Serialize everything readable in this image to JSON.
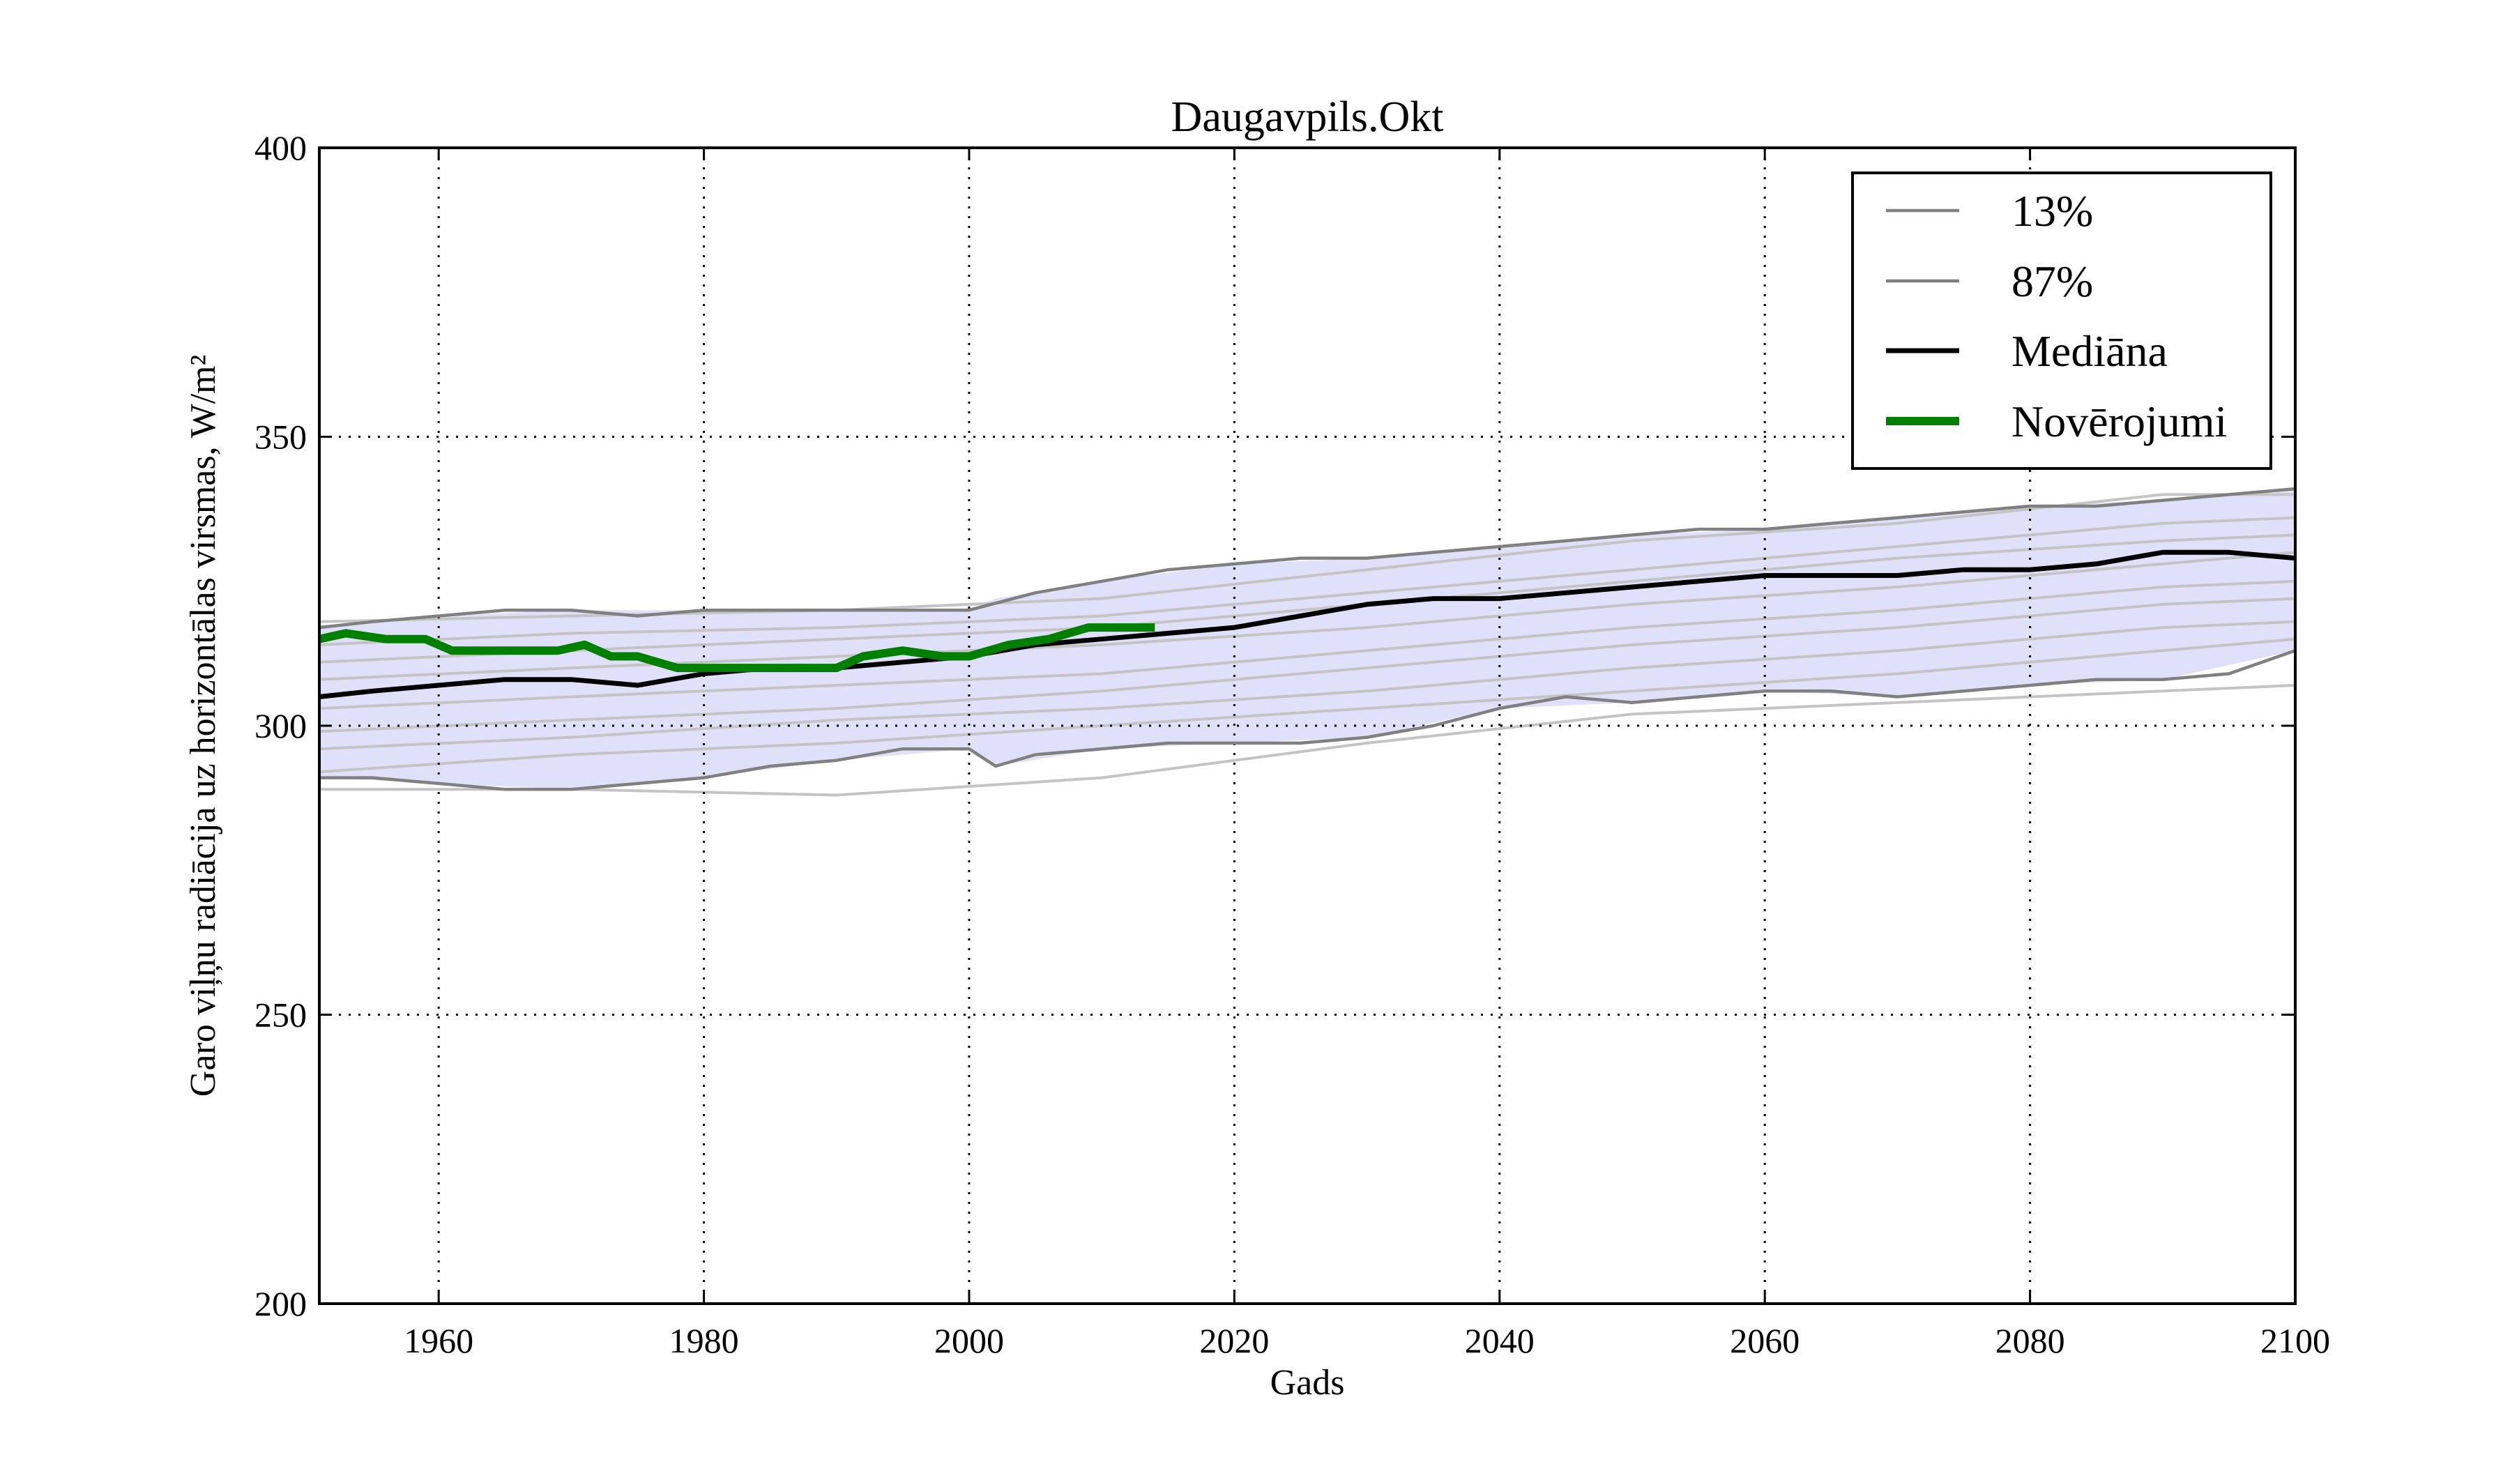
{
  "chart_data": {
    "type": "line",
    "title": "Daugavpils.Okt",
    "xlabel": "Gads",
    "ylabel": "Garo viļņu radiācija uz horizontālas virsmas, W/m²",
    "xlim": [
      1951,
      2100
    ],
    "ylim": [
      200,
      400
    ],
    "xticks": [
      1960,
      1980,
      2000,
      2020,
      2040,
      2060,
      2080,
      2100
    ],
    "yticks": [
      200,
      250,
      300,
      350,
      400
    ],
    "grid": true,
    "legend_position": "top-right",
    "band_color": "#e0e0fb",
    "band": {
      "name": "",
      "x": [
        1951,
        1960,
        1970,
        1980,
        1990,
        2000,
        2002,
        2010,
        2020,
        2030,
        2040,
        2050,
        2060,
        2070,
        2080,
        2090,
        2100
      ],
      "lower": [
        291,
        290,
        289,
        291,
        294,
        296,
        293,
        296,
        297,
        298,
        303,
        304,
        306,
        305,
        307,
        308,
        313
      ],
      "upper": [
        317,
        319,
        320,
        320,
        320,
        320,
        322,
        325,
        328,
        329,
        331,
        333,
        334,
        336,
        338,
        339,
        341
      ]
    },
    "series": [
      {
        "name": "13%",
        "role": "lower-percentile",
        "color": "#808080",
        "x": [
          1951,
          1955,
          1960,
          1965,
          1970,
          1975,
          1980,
          1985,
          1990,
          1995,
          2000,
          2002,
          2005,
          2010,
          2015,
          2020,
          2025,
          2030,
          2035,
          2040,
          2045,
          2050,
          2055,
          2060,
          2065,
          2070,
          2075,
          2080,
          2085,
          2090,
          2095,
          2100
        ],
        "y": [
          291,
          291,
          290,
          289,
          289,
          290,
          291,
          293,
          294,
          296,
          296,
          293,
          295,
          296,
          297,
          297,
          297,
          298,
          300,
          303,
          305,
          304,
          305,
          306,
          306,
          305,
          306,
          307,
          308,
          308,
          309,
          313
        ]
      },
      {
        "name": "87%",
        "role": "upper-percentile",
        "color": "#808080",
        "x": [
          1951,
          1955,
          1960,
          1965,
          1970,
          1975,
          1980,
          1985,
          1990,
          1995,
          2000,
          2005,
          2010,
          2015,
          2020,
          2025,
          2030,
          2035,
          2040,
          2045,
          2050,
          2055,
          2060,
          2065,
          2070,
          2075,
          2080,
          2085,
          2090,
          2095,
          2100
        ],
        "y": [
          317,
          318,
          319,
          320,
          320,
          319,
          320,
          320,
          320,
          320,
          320,
          323,
          325,
          327,
          328,
          329,
          329,
          330,
          331,
          332,
          333,
          334,
          334,
          335,
          336,
          337,
          338,
          338,
          339,
          340,
          341
        ]
      },
      {
        "name": "Mediāna",
        "role": "median",
        "color": "#000000",
        "x": [
          1951,
          1955,
          1960,
          1965,
          1970,
          1975,
          1980,
          1985,
          1990,
          1995,
          2000,
          2005,
          2010,
          2015,
          2020,
          2025,
          2030,
          2035,
          2040,
          2045,
          2050,
          2055,
          2060,
          2065,
          2070,
          2075,
          2080,
          2085,
          2090,
          2095,
          2100
        ],
        "y": [
          305,
          306,
          307,
          308,
          308,
          307,
          309,
          310,
          310,
          311,
          312,
          314,
          315,
          316,
          317,
          319,
          321,
          322,
          322,
          323,
          324,
          325,
          326,
          326,
          326,
          327,
          327,
          328,
          330,
          330,
          329
        ]
      },
      {
        "name": "Novērojumi",
        "role": "observations",
        "color": "#008000",
        "x": [
          1951,
          1953,
          1956,
          1959,
          1961,
          1963,
          1966,
          1969,
          1971,
          1973,
          1975,
          1978,
          1981,
          1984,
          1987,
          1990,
          1992,
          1995,
          1998,
          2000,
          2003,
          2006,
          2009,
          2012,
          2014
        ],
        "y": [
          315,
          316,
          315,
          315,
          313,
          313,
          313,
          313,
          314,
          312,
          312,
          310,
          310,
          310,
          310,
          310,
          312,
          313,
          312,
          312,
          314,
          315,
          317,
          317,
          317
        ]
      }
    ],
    "ensemble_color": "#c4c4c4",
    "ensemble_members": [
      {
        "x": [
          1951,
          1970,
          1990,
          2010,
          2030,
          2050,
          2070,
          2090,
          2100
        ],
        "y": [
          318,
          319,
          320,
          322,
          327,
          332,
          335,
          340,
          340
        ]
      },
      {
        "x": [
          1951,
          1970,
          1990,
          2010,
          2030,
          2050,
          2070,
          2090,
          2100
        ],
        "y": [
          314,
          316,
          317,
          319,
          323,
          327,
          331,
          335,
          336
        ]
      },
      {
        "x": [
          1951,
          1970,
          1990,
          2010,
          2030,
          2050,
          2070,
          2090,
          2100
        ],
        "y": [
          311,
          313,
          315,
          317,
          321,
          325,
          329,
          332,
          333
        ]
      },
      {
        "x": [
          1951,
          1970,
          1990,
          2010,
          2030,
          2050,
          2070,
          2090,
          2100
        ],
        "y": [
          308,
          310,
          312,
          314,
          317,
          321,
          324,
          328,
          330
        ]
      },
      {
        "x": [
          1951,
          1970,
          1990,
          2010,
          2030,
          2050,
          2070,
          2090,
          2100
        ],
        "y": [
          303,
          305,
          307,
          309,
          313,
          317,
          320,
          324,
          325
        ]
      },
      {
        "x": [
          1951,
          1970,
          1990,
          2010,
          2030,
          2050,
          2070,
          2090,
          2100
        ],
        "y": [
          299,
          301,
          303,
          306,
          310,
          314,
          317,
          321,
          322
        ]
      },
      {
        "x": [
          1951,
          1970,
          1990,
          2010,
          2030,
          2050,
          2070,
          2090,
          2100
        ],
        "y": [
          296,
          298,
          301,
          303,
          306,
          310,
          313,
          317,
          318
        ]
      },
      {
        "x": [
          1951,
          1970,
          1990,
          2010,
          2030,
          2050,
          2070,
          2090,
          2100
        ],
        "y": [
          292,
          295,
          297,
          300,
          303,
          306,
          309,
          313,
          315
        ]
      },
      {
        "x": [
          1951,
          1970,
          1990,
          2010,
          2030,
          2050,
          2070,
          2090,
          2100
        ],
        "y": [
          289,
          289,
          288,
          291,
          297,
          302,
          304,
          306,
          307
        ]
      }
    ]
  }
}
